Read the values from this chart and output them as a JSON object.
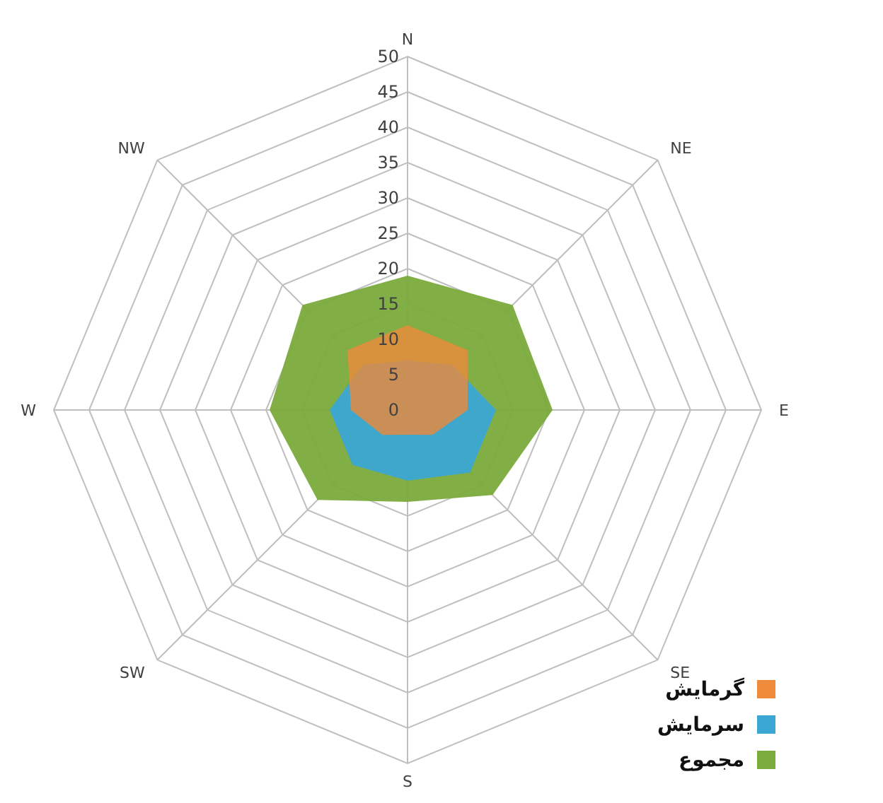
{
  "chart_data": {
    "type": "radar",
    "categories": [
      "N",
      "NE",
      "E",
      "SE",
      "S",
      "SW",
      "W",
      "NW"
    ],
    "ylim": [
      0,
      50
    ],
    "yticks": [
      0,
      5,
      10,
      15,
      20,
      25,
      30,
      35,
      40,
      45,
      50
    ],
    "legend": "bottom right",
    "marker": "none",
    "series": [
      {
        "name": "گرمایش",
        "color": "#ee8a3a",
        "values": [
          12,
          12,
          8.5,
          5,
          3.5,
          5,
          8,
          12
        ]
      },
      {
        "name": "سرمایش",
        "color": "#3ba7d4",
        "values": [
          7,
          9,
          12.5,
          12.5,
          10,
          11,
          11,
          9
        ]
      },
      {
        "name": "مجموع",
        "color": "#7aab3c",
        "values": [
          19,
          21,
          20.5,
          17,
          13,
          18,
          19.5,
          21
        ]
      }
    ]
  }
}
